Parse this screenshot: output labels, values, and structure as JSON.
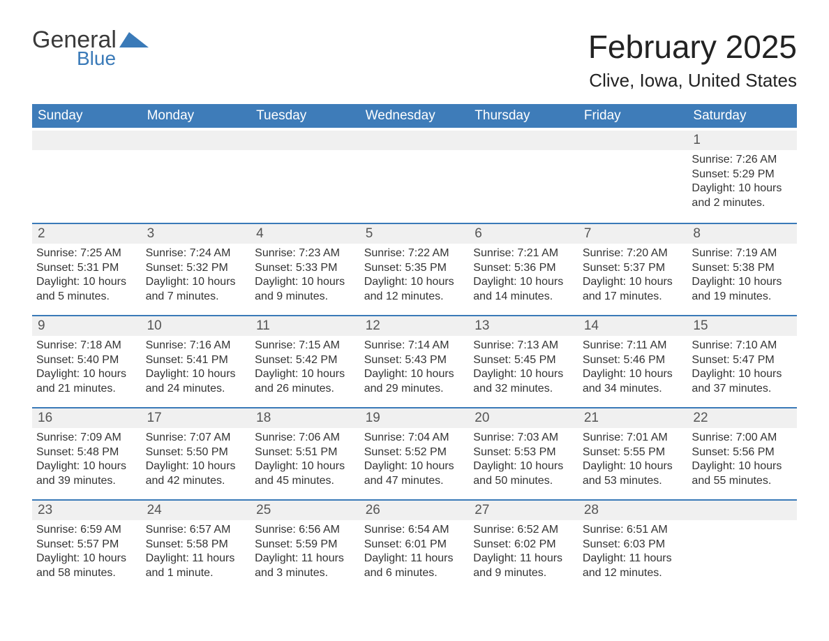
{
  "logo": {
    "word1": "General",
    "word2": "Blue"
  },
  "brand_color": "#3a7ab8",
  "header_bg": "#3e7cb9",
  "row_bg": "#f0f0f0",
  "title": "February 2025",
  "location": "Clive, Iowa, United States",
  "days_of_week": [
    "Sunday",
    "Monday",
    "Tuesday",
    "Wednesday",
    "Thursday",
    "Friday",
    "Saturday"
  ],
  "weeks": [
    {
      "rule": false,
      "days": [
        {
          "n": "",
          "empty": true,
          "sunrise": "",
          "sunset": "",
          "daylight": ""
        },
        {
          "n": "",
          "empty": true,
          "sunrise": "",
          "sunset": "",
          "daylight": ""
        },
        {
          "n": "",
          "empty": true,
          "sunrise": "",
          "sunset": "",
          "daylight": ""
        },
        {
          "n": "",
          "empty": true,
          "sunrise": "",
          "sunset": "",
          "daylight": ""
        },
        {
          "n": "",
          "empty": true,
          "sunrise": "",
          "sunset": "",
          "daylight": ""
        },
        {
          "n": "",
          "empty": true,
          "sunrise": "",
          "sunset": "",
          "daylight": ""
        },
        {
          "n": "1",
          "sunrise": "Sunrise: 7:26 AM",
          "sunset": "Sunset: 5:29 PM",
          "daylight": "Daylight: 10 hours and 2 minutes."
        }
      ]
    },
    {
      "rule": true,
      "days": [
        {
          "n": "2",
          "sunrise": "Sunrise: 7:25 AM",
          "sunset": "Sunset: 5:31 PM",
          "daylight": "Daylight: 10 hours and 5 minutes."
        },
        {
          "n": "3",
          "sunrise": "Sunrise: 7:24 AM",
          "sunset": "Sunset: 5:32 PM",
          "daylight": "Daylight: 10 hours and 7 minutes."
        },
        {
          "n": "4",
          "sunrise": "Sunrise: 7:23 AM",
          "sunset": "Sunset: 5:33 PM",
          "daylight": "Daylight: 10 hours and 9 minutes."
        },
        {
          "n": "5",
          "sunrise": "Sunrise: 7:22 AM",
          "sunset": "Sunset: 5:35 PM",
          "daylight": "Daylight: 10 hours and 12 minutes."
        },
        {
          "n": "6",
          "sunrise": "Sunrise: 7:21 AM",
          "sunset": "Sunset: 5:36 PM",
          "daylight": "Daylight: 10 hours and 14 minutes."
        },
        {
          "n": "7",
          "sunrise": "Sunrise: 7:20 AM",
          "sunset": "Sunset: 5:37 PM",
          "daylight": "Daylight: 10 hours and 17 minutes."
        },
        {
          "n": "8",
          "sunrise": "Sunrise: 7:19 AM",
          "sunset": "Sunset: 5:38 PM",
          "daylight": "Daylight: 10 hours and 19 minutes."
        }
      ]
    },
    {
      "rule": true,
      "days": [
        {
          "n": "9",
          "sunrise": "Sunrise: 7:18 AM",
          "sunset": "Sunset: 5:40 PM",
          "daylight": "Daylight: 10 hours and 21 minutes."
        },
        {
          "n": "10",
          "sunrise": "Sunrise: 7:16 AM",
          "sunset": "Sunset: 5:41 PM",
          "daylight": "Daylight: 10 hours and 24 minutes."
        },
        {
          "n": "11",
          "sunrise": "Sunrise: 7:15 AM",
          "sunset": "Sunset: 5:42 PM",
          "daylight": "Daylight: 10 hours and 26 minutes."
        },
        {
          "n": "12",
          "sunrise": "Sunrise: 7:14 AM",
          "sunset": "Sunset: 5:43 PM",
          "daylight": "Daylight: 10 hours and 29 minutes."
        },
        {
          "n": "13",
          "sunrise": "Sunrise: 7:13 AM",
          "sunset": "Sunset: 5:45 PM",
          "daylight": "Daylight: 10 hours and 32 minutes."
        },
        {
          "n": "14",
          "sunrise": "Sunrise: 7:11 AM",
          "sunset": "Sunset: 5:46 PM",
          "daylight": "Daylight: 10 hours and 34 minutes."
        },
        {
          "n": "15",
          "sunrise": "Sunrise: 7:10 AM",
          "sunset": "Sunset: 5:47 PM",
          "daylight": "Daylight: 10 hours and 37 minutes."
        }
      ]
    },
    {
      "rule": true,
      "days": [
        {
          "n": "16",
          "sunrise": "Sunrise: 7:09 AM",
          "sunset": "Sunset: 5:48 PM",
          "daylight": "Daylight: 10 hours and 39 minutes."
        },
        {
          "n": "17",
          "sunrise": "Sunrise: 7:07 AM",
          "sunset": "Sunset: 5:50 PM",
          "daylight": "Daylight: 10 hours and 42 minutes."
        },
        {
          "n": "18",
          "sunrise": "Sunrise: 7:06 AM",
          "sunset": "Sunset: 5:51 PM",
          "daylight": "Daylight: 10 hours and 45 minutes."
        },
        {
          "n": "19",
          "sunrise": "Sunrise: 7:04 AM",
          "sunset": "Sunset: 5:52 PM",
          "daylight": "Daylight: 10 hours and 47 minutes."
        },
        {
          "n": "20",
          "sunrise": "Sunrise: 7:03 AM",
          "sunset": "Sunset: 5:53 PM",
          "daylight": "Daylight: 10 hours and 50 minutes."
        },
        {
          "n": "21",
          "sunrise": "Sunrise: 7:01 AM",
          "sunset": "Sunset: 5:55 PM",
          "daylight": "Daylight: 10 hours and 53 minutes."
        },
        {
          "n": "22",
          "sunrise": "Sunrise: 7:00 AM",
          "sunset": "Sunset: 5:56 PM",
          "daylight": "Daylight: 10 hours and 55 minutes."
        }
      ]
    },
    {
      "rule": true,
      "days": [
        {
          "n": "23",
          "sunrise": "Sunrise: 6:59 AM",
          "sunset": "Sunset: 5:57 PM",
          "daylight": "Daylight: 10 hours and 58 minutes."
        },
        {
          "n": "24",
          "sunrise": "Sunrise: 6:57 AM",
          "sunset": "Sunset: 5:58 PM",
          "daylight": "Daylight: 11 hours and 1 minute."
        },
        {
          "n": "25",
          "sunrise": "Sunrise: 6:56 AM",
          "sunset": "Sunset: 5:59 PM",
          "daylight": "Daylight: 11 hours and 3 minutes."
        },
        {
          "n": "26",
          "sunrise": "Sunrise: 6:54 AM",
          "sunset": "Sunset: 6:01 PM",
          "daylight": "Daylight: 11 hours and 6 minutes."
        },
        {
          "n": "27",
          "sunrise": "Sunrise: 6:52 AM",
          "sunset": "Sunset: 6:02 PM",
          "daylight": "Daylight: 11 hours and 9 minutes."
        },
        {
          "n": "28",
          "sunrise": "Sunrise: 6:51 AM",
          "sunset": "Sunset: 6:03 PM",
          "daylight": "Daylight: 11 hours and 12 minutes."
        },
        {
          "n": "",
          "empty": true,
          "sunrise": "",
          "sunset": "",
          "daylight": ""
        }
      ]
    }
  ]
}
